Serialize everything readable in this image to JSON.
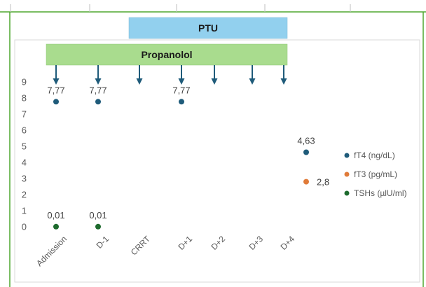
{
  "chart_data": {
    "type": "scatter",
    "categories": [
      "Admission",
      "D-1",
      "CRRT",
      "D+1",
      "D+2",
      "D+3",
      "D+4"
    ],
    "ylim": [
      0,
      9
    ],
    "yticks": [
      "0",
      "1",
      "2",
      "3",
      "4",
      "5",
      "6",
      "7",
      "8",
      "9"
    ],
    "grid": false,
    "legend": "right",
    "treatments": {
      "ptu": {
        "label": "PTU",
        "color": "#92d0ee"
      },
      "propranolol": {
        "label": "Propanolol",
        "color": "#a9dc8e"
      },
      "arrow_categories": [
        0,
        1,
        2,
        3,
        4,
        5,
        6
      ]
    },
    "series": [
      {
        "name": "fT4 (ng/dL)",
        "color": "#1f5b7a",
        "points": [
          {
            "cat": 0,
            "y": 7.77,
            "label": "7,77"
          },
          {
            "cat": 1,
            "y": 7.77,
            "label": "7,77"
          },
          {
            "cat": 3,
            "y": 7.77,
            "label": "7,77"
          },
          {
            "cat": 6,
            "y": 4.63,
            "label": "4,63"
          }
        ]
      },
      {
        "name": "fT3 (pg/mL)",
        "color": "#e07b39",
        "points": [
          {
            "cat": 6,
            "y": 2.8,
            "label": "2,8"
          }
        ]
      },
      {
        "name": "TSHs (µlU/ml)",
        "color": "#1e6b2e",
        "points": [
          {
            "cat": 0,
            "y": 0.01,
            "label": "0,01"
          },
          {
            "cat": 1,
            "y": 0.01,
            "label": "0,01"
          }
        ]
      }
    ]
  },
  "colors": {
    "frame_border": "#4ea72e",
    "arrow": "#1f5b7a",
    "axis_text": "#595959"
  }
}
